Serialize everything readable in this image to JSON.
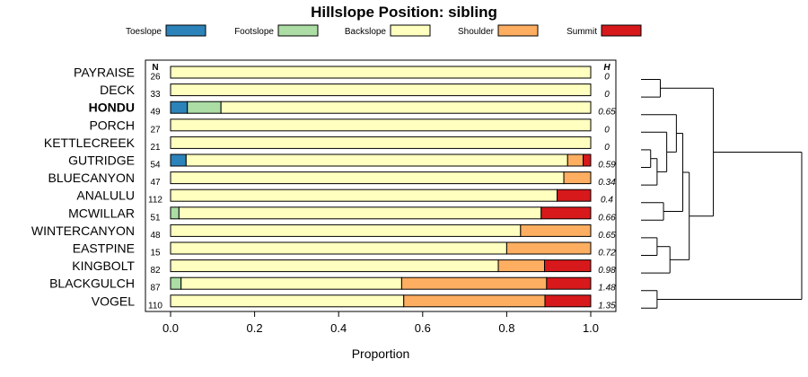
{
  "chart_data": {
    "type": "bar",
    "orientation": "horizontal",
    "stacked": true,
    "title": "Hillslope Position: sibling",
    "xlabel": "Proportion",
    "xlim": [
      0,
      1
    ],
    "x_ticks": [
      "0.0",
      "0.2",
      "0.4",
      "0.6",
      "0.8",
      "1.0"
    ],
    "legend_position": "top",
    "n_header": "N",
    "h_header": "H",
    "categories": [
      "PAYRAISE",
      "DECK",
      "HONDU",
      "PORCH",
      "KETTLECREEK",
      "GUTRIDGE",
      "BLUECANYON",
      "ANALULU",
      "MCWILLAR",
      "WINTERCANYON",
      "EASTPINE",
      "KINGBOLT",
      "BLACKGULCH",
      "VOGEL"
    ],
    "highlighted_category": "HONDU",
    "n_values": [
      "26",
      "33",
      "49",
      "27",
      "21",
      "54",
      "47",
      "112",
      "51",
      "48",
      "15",
      "82",
      "87",
      "110"
    ],
    "h_values": [
      "0",
      "0",
      "0.65",
      "0",
      "0",
      "0.59",
      "0.34",
      "0.4",
      "0.66",
      "0.65",
      "0.72",
      "0.98",
      "1.48",
      "1.35"
    ],
    "series": [
      {
        "name": "Toeslope",
        "color": "#2b83ba",
        "values": [
          0,
          0,
          0.04,
          0,
          0,
          0.037,
          0,
          0,
          0,
          0,
          0,
          0,
          0,
          0
        ]
      },
      {
        "name": "Footslope",
        "color": "#abdda4",
        "values": [
          0,
          0,
          0.08,
          0,
          0,
          0,
          0,
          0,
          0.02,
          0,
          0,
          0,
          0.025,
          0
        ]
      },
      {
        "name": "Backslope",
        "color": "#ffffbf",
        "values": [
          1,
          1,
          0.88,
          1,
          1,
          0.908,
          0.936,
          0.92,
          0.862,
          0.833,
          0.8,
          0.78,
          0.525,
          0.555
        ]
      },
      {
        "name": "Shoulder",
        "color": "#fdae61",
        "values": [
          0,
          0,
          0,
          0,
          0,
          0.037,
          0.064,
          0,
          0,
          0.167,
          0.2,
          0.11,
          0.345,
          0.336
        ]
      },
      {
        "name": "Summit",
        "color": "#d7191c",
        "values": [
          0,
          0,
          0,
          0,
          0,
          0.018,
          0,
          0.08,
          0.118,
          0,
          0,
          0.11,
          0.105,
          0.109
        ]
      }
    ],
    "dendrogram": {
      "merges": [
        {
          "id": "m1",
          "left": "KETTLECREEK",
          "right": "GUTRIDGE",
          "height": 0.06
        },
        {
          "id": "m2",
          "left": "m1",
          "right": "BLUECANYON",
          "height": 0.1
        },
        {
          "id": "m3",
          "left": "PORCH",
          "right": "m2",
          "height": 0.16
        },
        {
          "id": "m4",
          "left": "PAYRAISE",
          "right": "DECK",
          "height": 0.12
        },
        {
          "id": "m5",
          "left": "WINTERCANYON",
          "right": "EASTPINE",
          "height": 0.1
        },
        {
          "id": "m6",
          "left": "ANALULU",
          "right": "MCWILLAR",
          "height": 0.14
        },
        {
          "id": "m7",
          "left": "BLACKGULCH",
          "right": "VOGEL",
          "height": 0.1
        },
        {
          "id": "m8",
          "left": "m5",
          "right": "KINGBOLT",
          "height": 0.18
        },
        {
          "id": "m9",
          "left": "HONDU",
          "right": "m3",
          "height": 0.22
        },
        {
          "id": "m10",
          "left": "m9",
          "right": "m6",
          "height": 0.26
        },
        {
          "id": "m11",
          "left": "m10",
          "right": "m8",
          "height": 0.3
        },
        {
          "id": "m12",
          "left": "m4",
          "right": "m11",
          "height": 0.45
        },
        {
          "id": "m13",
          "left": "m12",
          "right": "m7",
          "height": 1.0
        }
      ]
    }
  }
}
